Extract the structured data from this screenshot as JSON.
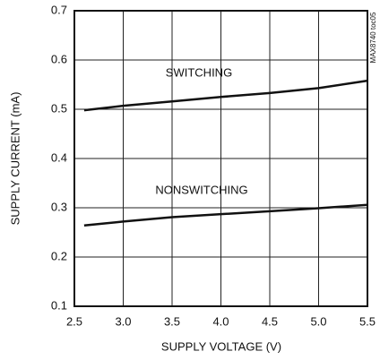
{
  "chart_data": {
    "type": "line",
    "side_note": "MAX8740 toc05",
    "x_label": "SUPPLY VOLTAGE (V)",
    "y_label": "SUPPLY CURRENT (mA)",
    "x": [
      2.6,
      3.0,
      3.5,
      4.0,
      4.5,
      5.0,
      5.5
    ],
    "series": [
      {
        "name": "SWITCHING",
        "color": "#111111",
        "values": [
          0.498,
          0.507,
          0.516,
          0.525,
          0.533,
          0.543,
          0.558
        ]
      },
      {
        "name": "NONSWITCHING",
        "color": "#111111",
        "values": [
          0.264,
          0.272,
          0.281,
          0.287,
          0.293,
          0.299,
          0.306
        ]
      }
    ],
    "xlim": [
      2.5,
      5.5
    ],
    "xticks": [
      2.5,
      {
        "value": 3,
        "label": "3.0"
      },
      3.5,
      {
        "value": 4,
        "label": "4.0"
      },
      4.5,
      {
        "value": 5,
        "label": "5.0"
      },
      5.5
    ],
    "ylim": [
      0.1,
      0.7
    ],
    "yticks": [
      0.1,
      0.2,
      0.3,
      0.4,
      0.5,
      0.6,
      0.7
    ],
    "grid": true
  }
}
